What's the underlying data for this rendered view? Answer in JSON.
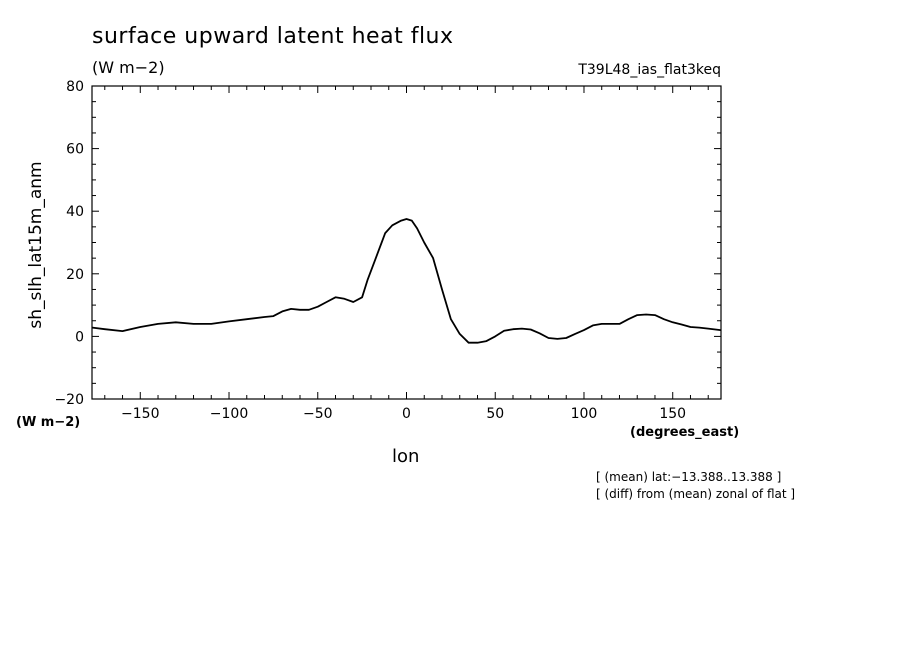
{
  "chart_data": {
    "type": "line",
    "title": "surface upward latent heat flux",
    "subtitle": "(W m−2)",
    "run_label": "T39L48_ias_flat3keq",
    "xlabel": "lon",
    "ylabel": "sh_slh_lat15m_anm",
    "x_units": "(degrees_east)",
    "y_units": "(W m−2)",
    "xlim": [
      -177.2,
      177.2
    ],
    "ylim": [
      -20,
      80
    ],
    "x_ticks": [
      -150,
      -100,
      -50,
      0,
      50,
      100,
      150
    ],
    "x_tick_labels": [
      "−150",
      "−100",
      "−50",
      "0",
      "50",
      "100",
      "150"
    ],
    "y_ticks": [
      -20,
      0,
      20,
      40,
      60,
      80
    ],
    "y_tick_labels": [
      "−20",
      "0",
      "20",
      "40",
      "60",
      "80"
    ],
    "grid": false,
    "series": [
      {
        "x": [
          -177,
          -170,
          -160,
          -150,
          -140,
          -130,
          -120,
          -110,
          -100,
          -90,
          -80,
          -75,
          -70,
          -65,
          -60,
          -55,
          -50,
          -45,
          -40,
          -35,
          -30,
          -25,
          -22,
          -18,
          -12,
          -8,
          -3,
          0,
          3,
          6,
          10,
          15,
          20,
          25,
          30,
          35,
          40,
          45,
          50,
          55,
          60,
          65,
          70,
          75,
          80,
          85,
          90,
          95,
          100,
          105,
          110,
          115,
          120,
          125,
          130,
          135,
          140,
          145,
          150,
          155,
          160,
          165,
          170,
          177
        ],
        "values": [
          2.8,
          2.3,
          1.7,
          3.0,
          4.0,
          4.5,
          4.0,
          4.0,
          4.8,
          5.5,
          6.2,
          6.5,
          8.0,
          8.8,
          8.5,
          8.5,
          9.5,
          11.0,
          12.5,
          12.0,
          11.0,
          12.5,
          18.0,
          24.0,
          33.0,
          35.5,
          37.0,
          37.5,
          37.0,
          34.5,
          30.0,
          25.0,
          15.0,
          5.5,
          0.8,
          -2.0,
          -2.0,
          -1.5,
          0.0,
          1.8,
          2.3,
          2.5,
          2.2,
          1.0,
          -0.5,
          -0.8,
          -0.5,
          0.8,
          2.0,
          3.5,
          4.0,
          4.0,
          4.0,
          5.5,
          6.8,
          7.0,
          6.8,
          5.5,
          4.5,
          3.8,
          3.0,
          2.8,
          2.5,
          2.0
        ]
      }
    ]
  },
  "notes": [
    "[ (mean) lat:−13.388..13.388 ]",
    "[ (diff) from (mean) zonal of flat ]"
  ]
}
